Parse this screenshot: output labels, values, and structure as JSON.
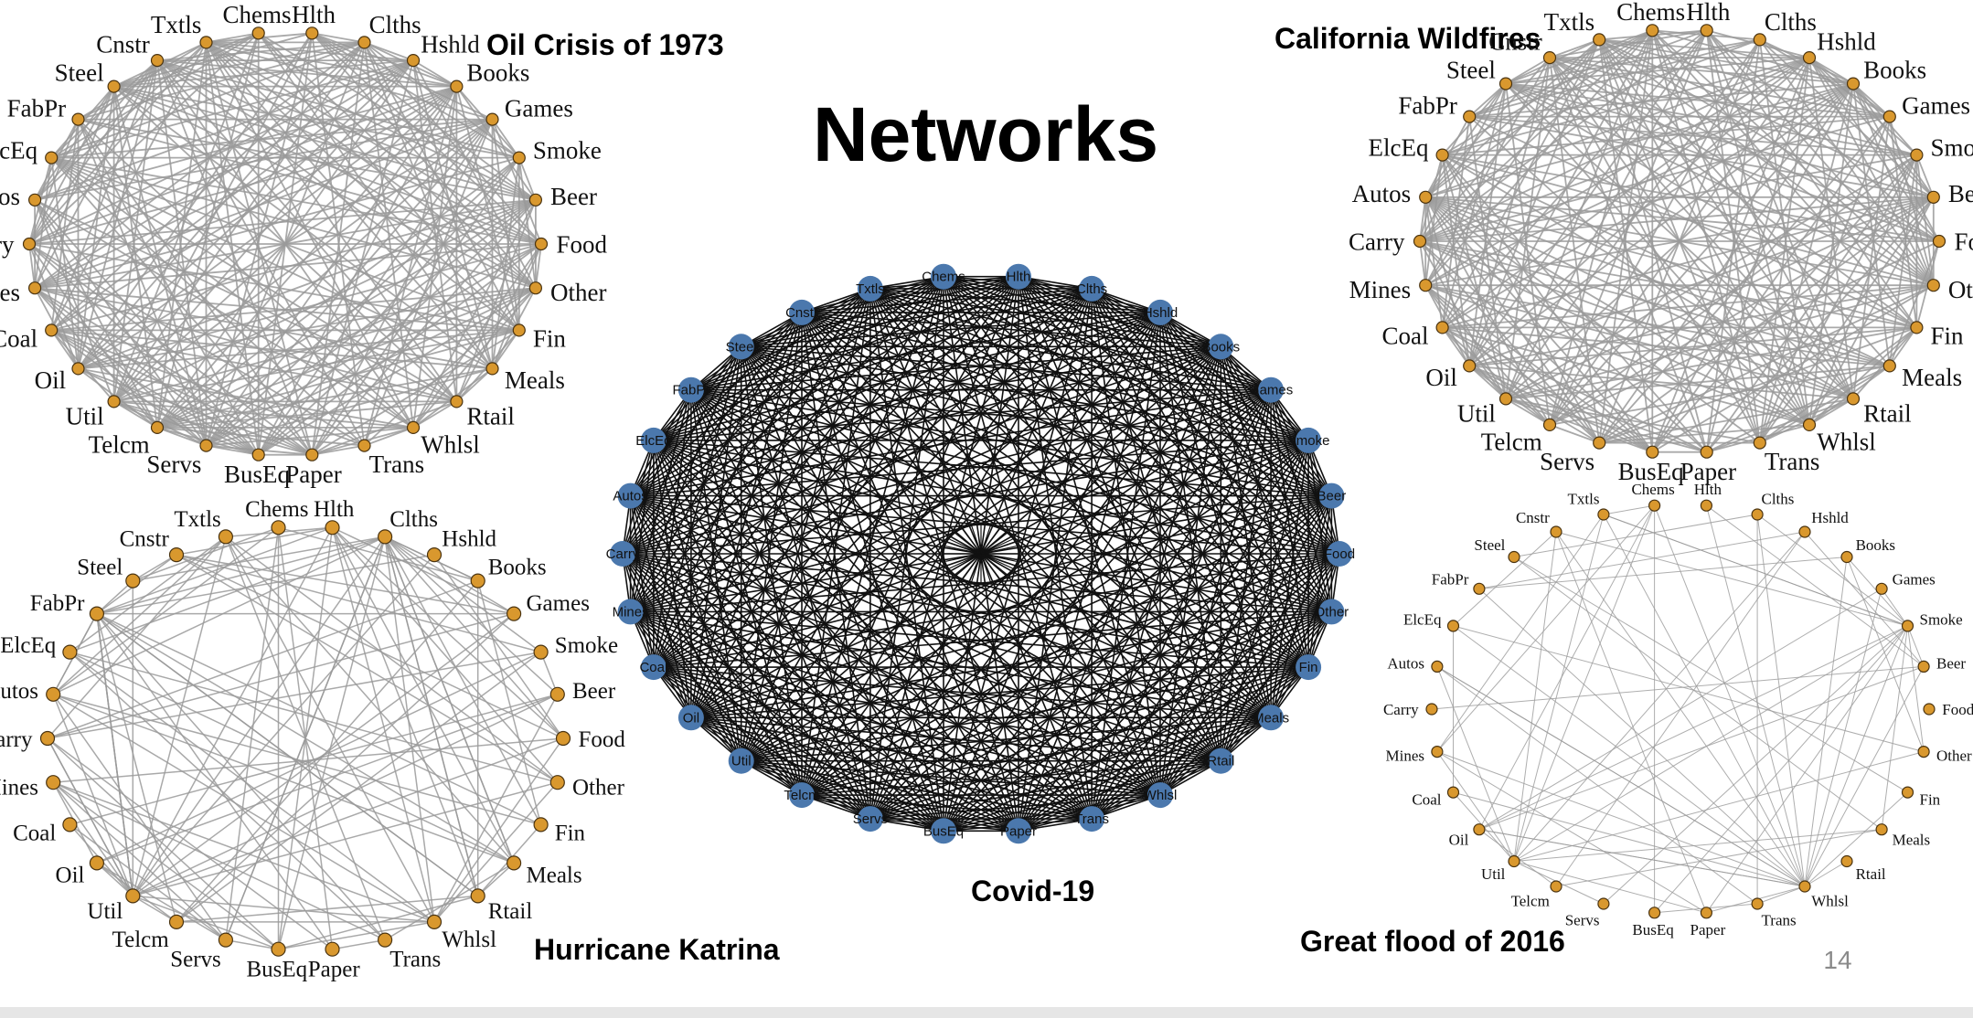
{
  "slide": {
    "title": "Networks",
    "page_number": "14"
  },
  "colors": {
    "orange_node": "#d9982e",
    "orange_stroke": "#4a3310",
    "blue_node": "#4b78ad",
    "gray_edge": "#9a9a9a",
    "black_edge": "#111111"
  },
  "node_labels": [
    "Food",
    "Beer",
    "Smoke",
    "Games",
    "Books",
    "Hshld",
    "Clths",
    "Hlth",
    "Chems",
    "Txtls",
    "Cnstr",
    "Steel",
    "FabPr",
    "ElcEq",
    "Autos",
    "Carry",
    "Mines",
    "Coal",
    "Oil",
    "Util",
    "Telcm",
    "Servs",
    "BusEq",
    "Paper",
    "Trans",
    "Whlsl",
    "Rtail",
    "Meals",
    "Fin",
    "Other"
  ],
  "networks": [
    {
      "id": "oil-crisis-1973",
      "title": "Oil Crisis of 1973",
      "style": "orange",
      "label_font": "serif",
      "edge_pattern": "dense"
    },
    {
      "id": "california-wildfires",
      "title": "California Wildfires",
      "style": "orange",
      "label_font": "serif",
      "edge_pattern": "dense"
    },
    {
      "id": "hurricane-katrina",
      "title": "Hurricane Katrina",
      "style": "orange",
      "label_font": "serif",
      "edge_pattern": "medium"
    },
    {
      "id": "great-flood-2016",
      "title": "Great flood of 2016",
      "style": "orange",
      "label_font": "serif",
      "edge_pattern": "sparse"
    },
    {
      "id": "covid-19",
      "title": "Covid-19",
      "style": "blue",
      "label_font": "sans",
      "edge_pattern": "complete"
    }
  ]
}
